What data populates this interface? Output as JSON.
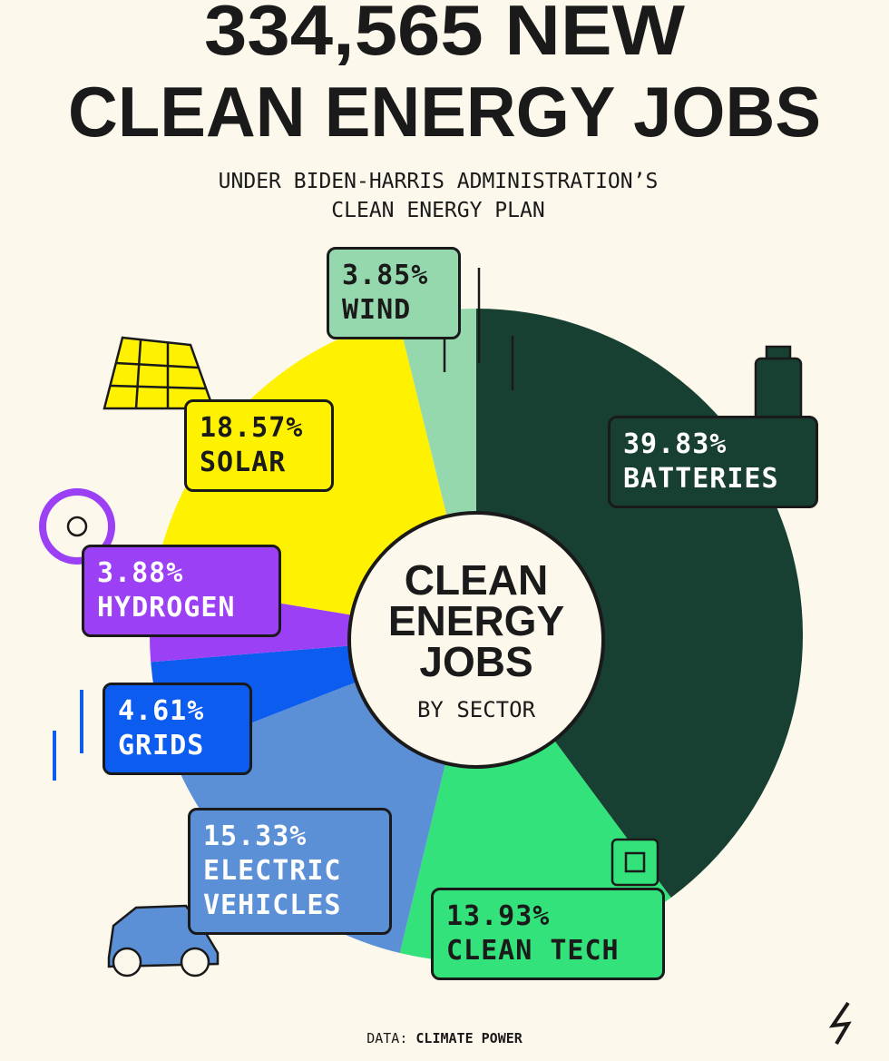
{
  "chart_data": {
    "type": "pie",
    "title": [
      "334,565 NEW",
      "CLEAN ENERGY JOBS"
    ],
    "subtitle": [
      "UNDER BIDEN-HARRIS ADMINISTRATION’S",
      "CLEAN ENERGY PLAN"
    ],
    "center_label": [
      "CLEAN",
      "ENERGY",
      "JOBS"
    ],
    "center_sublabel": "BY SECTOR",
    "categories": [
      "BATTERIES",
      "CLEAN TECH",
      "ELECTRIC VEHICLES",
      "GRIDS",
      "HYDROGEN",
      "SOLAR",
      "WIND"
    ],
    "values": [
      39.83,
      13.93,
      15.33,
      4.61,
      3.88,
      18.57,
      3.85
    ],
    "value_labels": [
      "39.83%",
      "13.93%",
      "15.33%",
      "4.61%",
      "3.88%",
      "18.57%",
      "3.85%"
    ],
    "colors": [
      "#173f32",
      "#33e27a",
      "#5b8fd6",
      "#0d5cf0",
      "#9b40f5",
      "#fff200",
      "#96d8ae"
    ],
    "source_label": "DATA:",
    "source": "CLIMATE POWER"
  }
}
